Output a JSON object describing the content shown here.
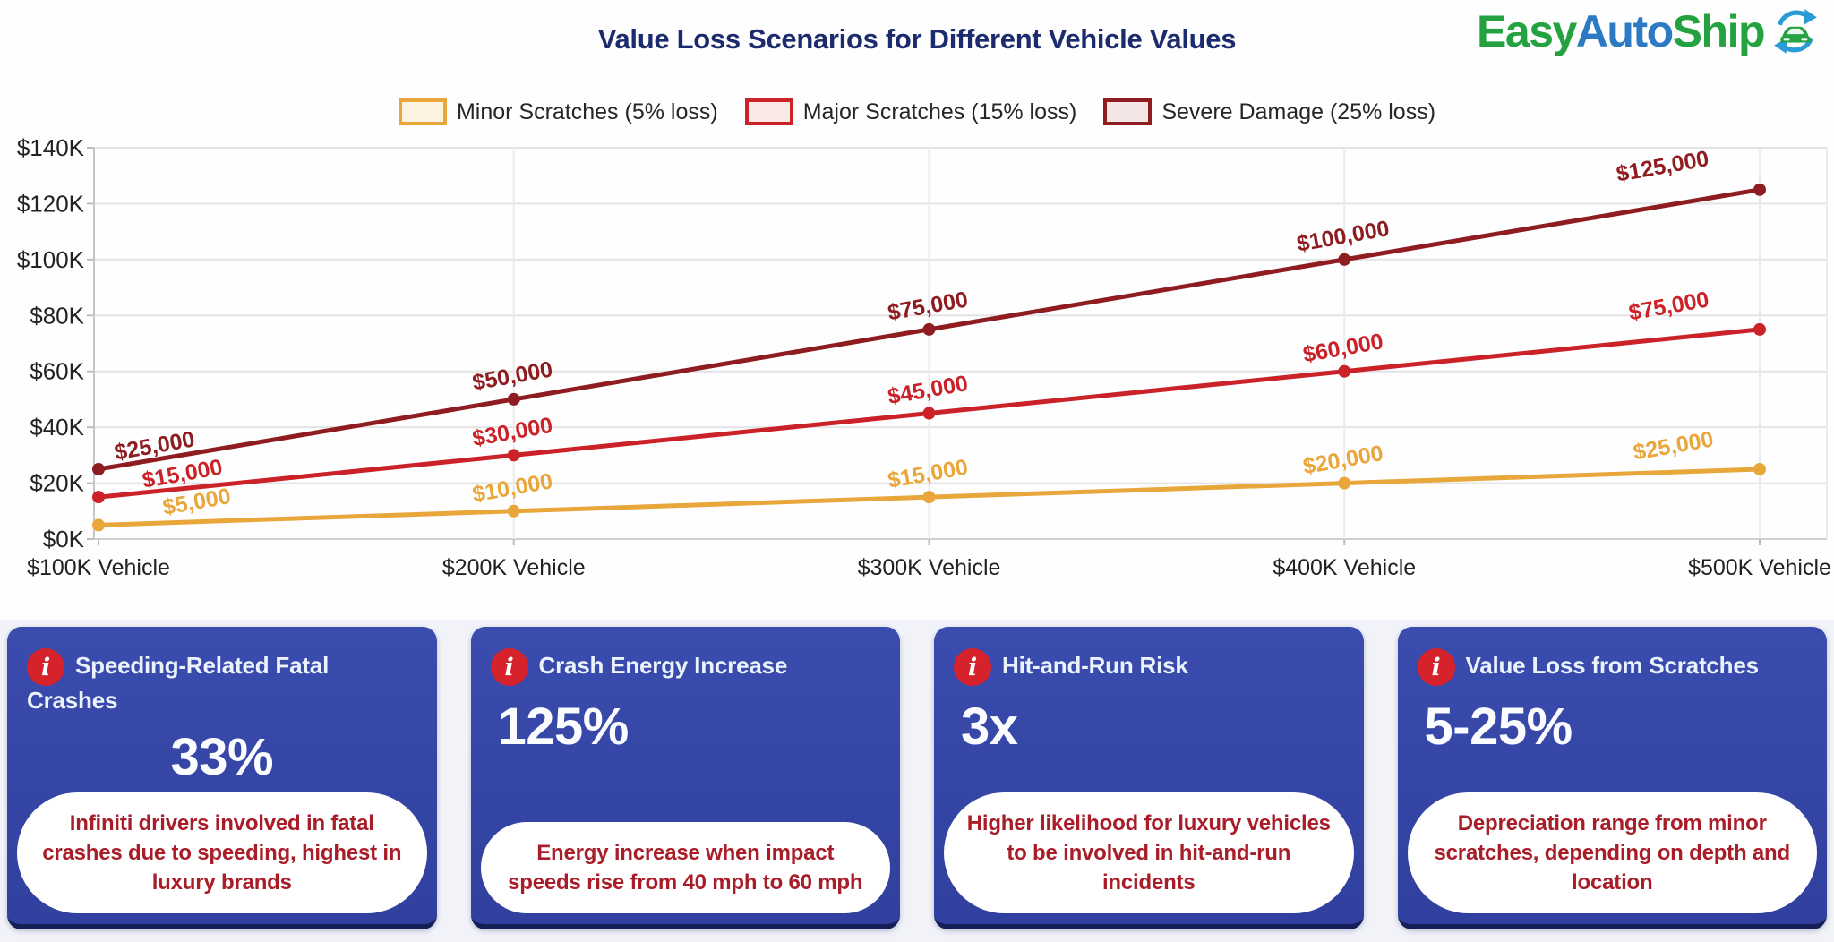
{
  "header": {
    "title": "Value Loss Scenarios for Different Vehicle Values",
    "logo": {
      "easy": "Easy",
      "auto": "Auto",
      "ship": "Ship"
    }
  },
  "chart_data": {
    "type": "line",
    "title": "Value Loss Scenarios for Different Vehicle Values",
    "categories": [
      "$100K Vehicle",
      "$200K Vehicle",
      "$300K Vehicle",
      "$400K Vehicle",
      "$500K Vehicle"
    ],
    "xlabel": "",
    "ylabel": "",
    "ylim": [
      0,
      140000
    ],
    "grid": true,
    "legend_position": "top",
    "y_axis": {
      "values": [
        0,
        20000,
        40000,
        60000,
        80000,
        100000,
        120000,
        140000
      ],
      "labels": [
        "$0K",
        "$20K",
        "$40K",
        "$60K",
        "$80K",
        "$100K",
        "$120K",
        "$140K"
      ]
    },
    "series": [
      {
        "name": "Minor Scratches (5% loss)",
        "color": "#E9A63B",
        "swatch_fill": "#FBF2DF",
        "values": [
          5000,
          10000,
          15000,
          20000,
          25000
        ],
        "labels": [
          "$5,000",
          "$10,000",
          "$15,000",
          "$20,000",
          "$25,000"
        ]
      },
      {
        "name": "Major Scratches (15% loss)",
        "color": "#CB2128",
        "swatch_fill": "#F8E9E7",
        "values": [
          15000,
          30000,
          45000,
          60000,
          75000
        ],
        "labels": [
          "$15,000",
          "$30,000",
          "$45,000",
          "$60,000",
          "$75,000"
        ]
      },
      {
        "name": "Severe Damage (25% loss)",
        "color": "#8E1C20",
        "swatch_fill": "#F3E7E6",
        "values": [
          25000,
          50000,
          75000,
          100000,
          125000
        ],
        "labels": [
          "$25,000",
          "$50,000",
          "$75,000",
          "$100,000",
          "$125,000"
        ]
      }
    ]
  },
  "cards": [
    {
      "title": "Speeding-Related Fatal Crashes",
      "stat": "33%",
      "description": "Infiniti drivers involved in fatal crashes due to speeding, highest in luxury brands"
    },
    {
      "title": "Crash Energy Increase",
      "stat": "125%",
      "description": "Energy increase when impact speeds rise from 40 mph to 60 mph"
    },
    {
      "title": "Hit-and-Run Risk",
      "stat": "3x",
      "description": "Higher likelihood for luxury vehicles to be involved in hit-and-run incidents"
    },
    {
      "title": "Value Loss from Scratches",
      "stat": "5-25%",
      "description": "Depreciation range from minor scratches, depending on depth and location"
    }
  ],
  "colors": {
    "title_navy": "#1B2B6E",
    "card_blue": "#3546A5",
    "card_border": "#161F55",
    "pill_text_red": "#A81D28",
    "info_icon_red": "#D6222B",
    "logo_green": "#23A23F",
    "logo_blue": "#2C79C4",
    "axis_text": "#222222",
    "gridline": "#E4E4E6"
  }
}
